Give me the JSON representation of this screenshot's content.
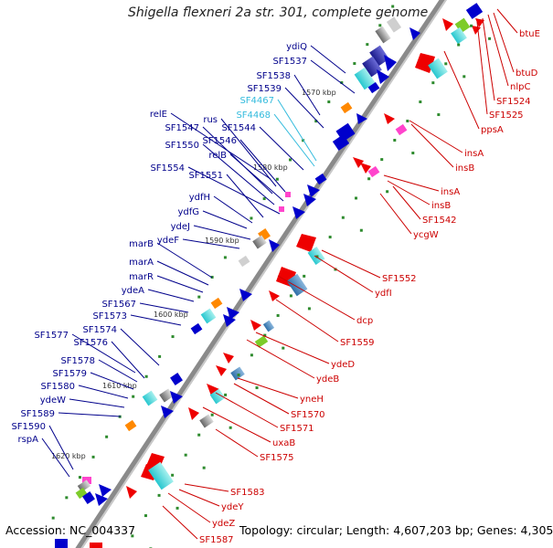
{
  "title": "Shigella flexneri 2a str. 301, complete genome",
  "accession_text": "Accession: NC_004337",
  "summary_text": "Topology: circular; Length: 4,607,203 bp; Genes: 4,305",
  "colors": {
    "backbone": "#7f7f7f",
    "left_label": "#00008b",
    "right_label": "#cc0000",
    "highlight_label": "#33bbdd",
    "tick_dot": "#2e8b2e"
  },
  "kbp_markers": [
    "1570 kbp",
    "1580 kbp",
    "1590 kbp",
    "1600 kbp",
    "1610 kbp",
    "1620 kbp"
  ],
  "left_genes": [
    "ydiQ",
    "SF1537",
    "SF1538",
    "SF1539",
    "SF4467",
    "SF4468",
    "relE",
    "rus",
    "SF1547",
    "SF1544",
    "SF1546",
    "SF1550",
    "relB",
    "SF1554",
    "SF1551",
    "ydfH",
    "ydfG",
    "ydeJ",
    "ydeF",
    "marB",
    "marA",
    "marR",
    "ydeA",
    "SF1567",
    "SF1573",
    "SF1574",
    "SF1577",
    "SF1576",
    "SF1578",
    "SF1579",
    "SF1580",
    "ydeW",
    "SF1589",
    "SF1590",
    "rspA"
  ],
  "highlight_genes": [
    "SF4467",
    "SF4468"
  ],
  "right_genes": [
    "btuE",
    "btuD",
    "nlpC",
    "SF1524",
    "SF1525",
    "ppsA",
    "insA",
    "insB",
    "insA",
    "insB",
    "SF1542",
    "ycgW",
    "SF1552",
    "ydfI",
    "dcp",
    "SF1559",
    "ydeD",
    "ydeB",
    "yneH",
    "SF1570",
    "SF1571",
    "uxaB",
    "SF1575",
    "SF1583",
    "ydeY",
    "ydeZ",
    "SF1587"
  ]
}
